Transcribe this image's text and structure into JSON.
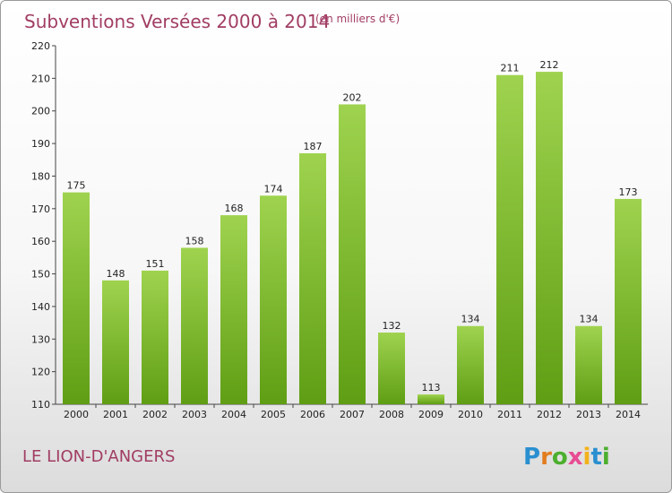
{
  "header": {
    "title": "Subventions Versées 2000 à 2014",
    "subtitle": "(en milliers d'€)"
  },
  "footer": {
    "place": "LE LION-D'ANGERS",
    "logo": "Proxiti"
  },
  "colors": {
    "title": "#a13d63",
    "bar_top": "#9fd34f",
    "bar_bottom": "#5f9e14",
    "logo_letters": [
      "#2a8fd0",
      "#e27d1f",
      "#4caf2e",
      "#e84c93",
      "#f2b21a",
      "#2a8fd0",
      "#4caf2e"
    ]
  },
  "chart_data": {
    "type": "bar",
    "categories": [
      "2000",
      "2001",
      "2002",
      "2003",
      "2004",
      "2005",
      "2006",
      "2007",
      "2008",
      "2009",
      "2010",
      "2011",
      "2012",
      "2013",
      "2014"
    ],
    "values": [
      175,
      148,
      151,
      158,
      168,
      174,
      187,
      202,
      132,
      113,
      134,
      211,
      212,
      134,
      173
    ],
    "ylim": [
      110,
      220
    ],
    "yticks": [
      110,
      120,
      130,
      140,
      150,
      160,
      170,
      180,
      190,
      200,
      210,
      220
    ],
    "grid": false
  }
}
